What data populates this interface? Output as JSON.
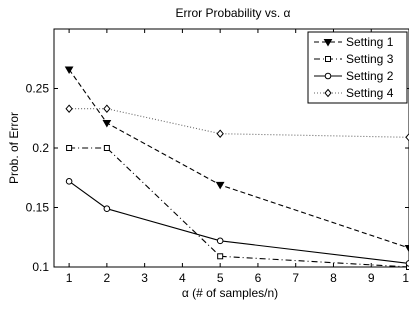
{
  "chart_data": {
    "type": "line",
    "title": "Error Probability vs. α",
    "xlabel": "α (# of samples/n)",
    "ylabel": "Prob. of Error",
    "xlim": [
      0.6,
      10
    ],
    "ylim": [
      0.1,
      0.3
    ],
    "xticks": [
      1,
      2,
      3,
      4,
      5,
      6,
      7,
      8,
      9,
      10
    ],
    "yticks": [
      0.1,
      0.15,
      0.2,
      0.25
    ],
    "ytick_labels": [
      "0.1",
      "0.15",
      "0.2",
      "0.25"
    ],
    "grid": false,
    "legend_position": "top-right",
    "series": [
      {
        "name": "Setting 1",
        "line": "dashed",
        "marker": "triangle-down",
        "x": [
          1,
          2,
          5,
          10
        ],
        "y": [
          0.266,
          0.221,
          0.169,
          0.116
        ]
      },
      {
        "name": "Setting 3",
        "line": "dashdot",
        "marker": "square",
        "x": [
          1,
          2,
          5,
          10
        ],
        "y": [
          0.2,
          0.2,
          0.109,
          0.1
        ]
      },
      {
        "name": "Setting 2",
        "line": "solid",
        "marker": "circle",
        "x": [
          1,
          2,
          5,
          10
        ],
        "y": [
          0.172,
          0.149,
          0.122,
          0.103
        ]
      },
      {
        "name": "Setting 4",
        "line": "dotted",
        "marker": "diamond",
        "x": [
          1,
          2,
          5,
          10
        ],
        "y": [
          0.233,
          0.233,
          0.212,
          0.209
        ]
      }
    ]
  }
}
